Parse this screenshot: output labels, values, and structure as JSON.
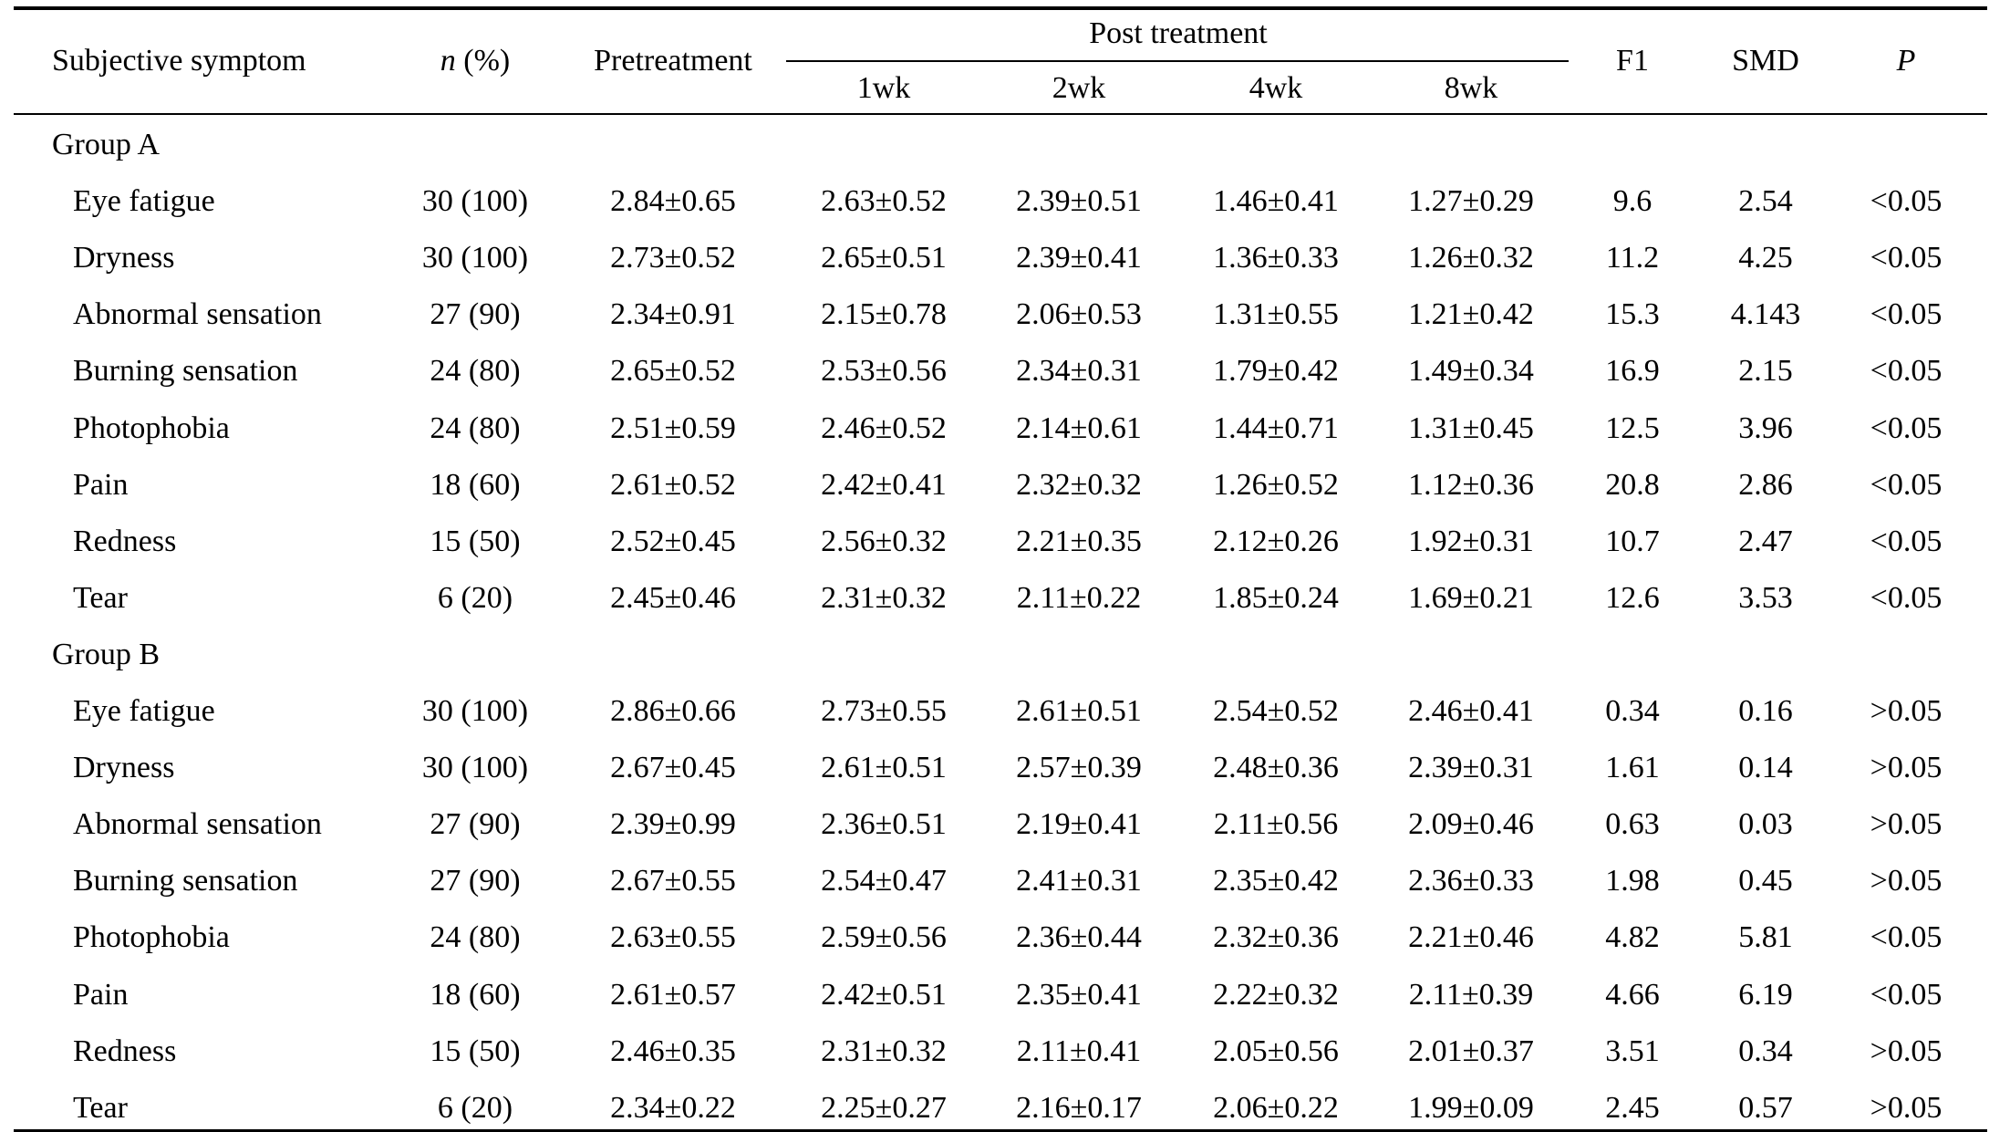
{
  "headers": {
    "subjective_symptom": "Subjective symptom",
    "n_italic": "n",
    "n_suffix": " (%)",
    "pretreatment": "Pretreatment",
    "post_treatment": "Post treatment",
    "weeks": [
      "1wk",
      "2wk",
      "4wk",
      "8wk"
    ],
    "f1": "F1",
    "smd": "SMD",
    "p": "P"
  },
  "groups": [
    {
      "label": "Group A",
      "rows": [
        {
          "symptom": "Eye fatigue",
          "n": "30 (100)",
          "pre": "2.84±0.65",
          "w1": "2.63±0.52",
          "w2": "2.39±0.51",
          "w4": "1.46±0.41",
          "w8": "1.27±0.29",
          "f1": "9.6",
          "smd": "2.54",
          "p": "<0.05"
        },
        {
          "symptom": "Dryness",
          "n": "30 (100)",
          "pre": "2.73±0.52",
          "w1": "2.65±0.51",
          "w2": "2.39±0.41",
          "w4": "1.36±0.33",
          "w8": "1.26±0.32",
          "f1": "11.2",
          "smd": "4.25",
          "p": "<0.05"
        },
        {
          "symptom": "Abnormal sensation",
          "n": "27 (90)",
          "pre": "2.34±0.91",
          "w1": "2.15±0.78",
          "w2": "2.06±0.53",
          "w4": "1.31±0.55",
          "w8": "1.21±0.42",
          "f1": "15.3",
          "smd": "4.143",
          "p": "<0.05"
        },
        {
          "symptom": "Burning sensation",
          "n": "24 (80)",
          "pre": "2.65±0.52",
          "w1": "2.53±0.56",
          "w2": "2.34±0.31",
          "w4": "1.79±0.42",
          "w8": "1.49±0.34",
          "f1": "16.9",
          "smd": "2.15",
          "p": "<0.05"
        },
        {
          "symptom": "Photophobia",
          "n": "24 (80)",
          "pre": "2.51±0.59",
          "w1": "2.46±0.52",
          "w2": "2.14±0.61",
          "w4": "1.44±0.71",
          "w8": "1.31±0.45",
          "f1": "12.5",
          "smd": "3.96",
          "p": "<0.05"
        },
        {
          "symptom": "Pain",
          "n": "18 (60)",
          "pre": "2.61±0.52",
          "w1": "2.42±0.41",
          "w2": "2.32±0.32",
          "w4": "1.26±0.52",
          "w8": "1.12±0.36",
          "f1": "20.8",
          "smd": "2.86",
          "p": "<0.05"
        },
        {
          "symptom": "Redness",
          "n": "15 (50)",
          "pre": "2.52±0.45",
          "w1": "2.56±0.32",
          "w2": "2.21±0.35",
          "w4": "2.12±0.26",
          "w8": "1.92±0.31",
          "f1": "10.7",
          "smd": "2.47",
          "p": "<0.05"
        },
        {
          "symptom": "Tear",
          "n": "6 (20)",
          "pre": "2.45±0.46",
          "w1": "2.31±0.32",
          "w2": "2.11±0.22",
          "w4": "1.85±0.24",
          "w8": "1.69±0.21",
          "f1": "12.6",
          "smd": "3.53",
          "p": "<0.05"
        }
      ]
    },
    {
      "label": "Group B",
      "rows": [
        {
          "symptom": "Eye fatigue",
          "n": "30 (100)",
          "pre": "2.86±0.66",
          "w1": "2.73±0.55",
          "w2": "2.61±0.51",
          "w4": "2.54±0.52",
          "w8": "2.46±0.41",
          "f1": "0.34",
          "smd": "0.16",
          "p": ">0.05"
        },
        {
          "symptom": "Dryness",
          "n": "30 (100)",
          "pre": "2.67±0.45",
          "w1": "2.61±0.51",
          "w2": "2.57±0.39",
          "w4": "2.48±0.36",
          "w8": "2.39±0.31",
          "f1": "1.61",
          "smd": "0.14",
          "p": ">0.05"
        },
        {
          "symptom": "Abnormal sensation",
          "n": "27 (90)",
          "pre": "2.39±0.99",
          "w1": "2.36±0.51",
          "w2": "2.19±0.41",
          "w4": "2.11±0.56",
          "w8": "2.09±0.46",
          "f1": "0.63",
          "smd": "0.03",
          "p": ">0.05"
        },
        {
          "symptom": "Burning sensation",
          "n": "27 (90)",
          "pre": "2.67±0.55",
          "w1": "2.54±0.47",
          "w2": "2.41±0.31",
          "w4": "2.35±0.42",
          "w8": "2.36±0.33",
          "f1": "1.98",
          "smd": "0.45",
          "p": ">0.05"
        },
        {
          "symptom": "Photophobia",
          "n": "24 (80)",
          "pre": "2.63±0.55",
          "w1": "2.59±0.56",
          "w2": "2.36±0.44",
          "w4": "2.32±0.36",
          "w8": "2.21±0.46",
          "f1": "4.82",
          "smd": "5.81",
          "p": "<0.05"
        },
        {
          "symptom": "Pain",
          "n": "18 (60)",
          "pre": "2.61±0.57",
          "w1": "2.42±0.51",
          "w2": "2.35±0.41",
          "w4": "2.22±0.32",
          "w8": "2.11±0.39",
          "f1": "4.66",
          "smd": "6.19",
          "p": "<0.05"
        },
        {
          "symptom": "Redness",
          "n": "15 (50)",
          "pre": "2.46±0.35",
          "w1": "2.31±0.32",
          "w2": "2.11±0.41",
          "w4": "2.05±0.56",
          "w8": "2.01±0.37",
          "f1": "3.51",
          "smd": "0.34",
          "p": ">0.05"
        },
        {
          "symptom": "Tear",
          "n": "6 (20)",
          "pre": "2.34±0.22",
          "w1": "2.25±0.27",
          "w2": "2.16±0.17",
          "w4": "2.06±0.22",
          "w8": "1.99±0.09",
          "f1": "2.45",
          "smd": "0.57",
          "p": ">0.05"
        }
      ]
    }
  ]
}
